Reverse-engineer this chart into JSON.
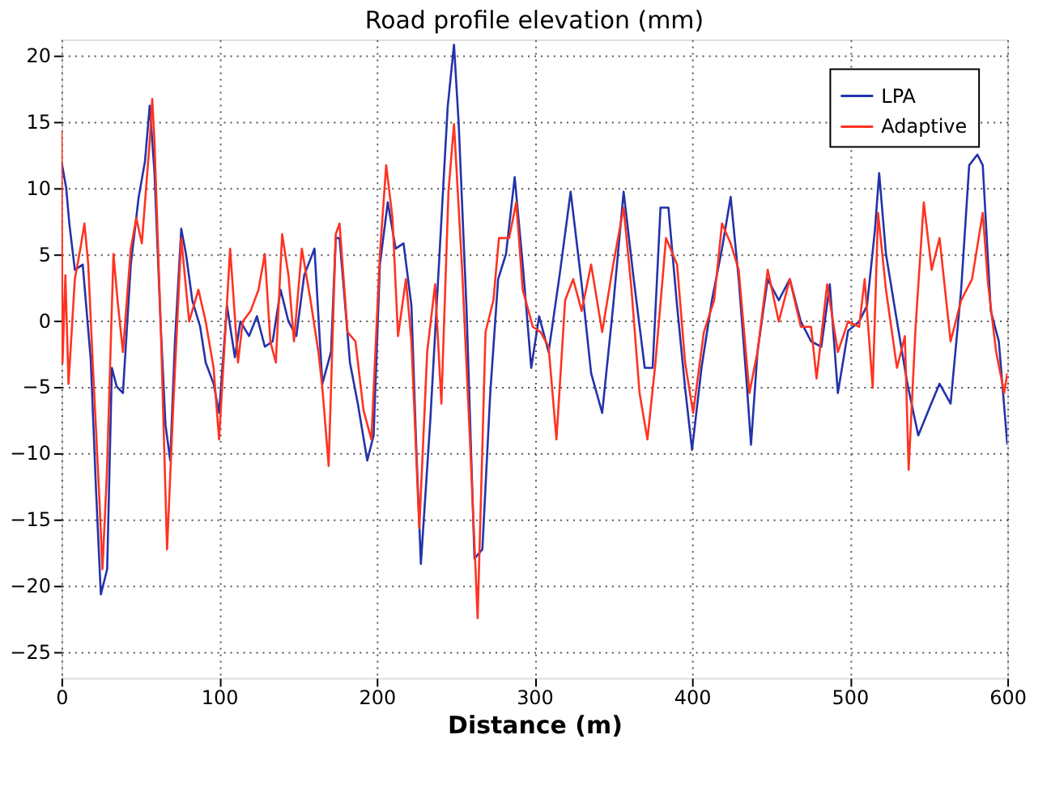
{
  "chart_data": {
    "type": "line",
    "title": "Road profile elevation (mm)",
    "xlabel": "Distance (m)",
    "xlim": [
      0,
      600
    ],
    "xticks": [
      0,
      100,
      200,
      300,
      400,
      500,
      600
    ],
    "ylim": [
      -27,
      21.2
    ],
    "yticks": [
      -25,
      -20,
      -15,
      -10,
      -5,
      0,
      5,
      10,
      15,
      20
    ],
    "grid": true,
    "legend": "top right",
    "series": [
      {
        "name": "LPA",
        "color": "#2233aa",
        "x": [
          0,
          3,
          5,
          8.5,
          13.5,
          18.6,
          22,
          25,
          29,
          32,
          35,
          39,
          44,
          49,
          53,
          56,
          59,
          63,
          66,
          69,
          72,
          76,
          79,
          83,
          88,
          91.5,
          96.5,
          100,
          105,
          110,
          113.5,
          119,
          124,
          129,
          134,
          139,
          144,
          149,
          154,
          160.5,
          165.5,
          171,
          174,
          176.4,
          183,
          188,
          194,
          198,
          202,
          207,
          212,
          217,
          222,
          225,
          228,
          234,
          240,
          245,
          249,
          252,
          257,
          262,
          267,
          272,
          277,
          282,
          287.5,
          292.6,
          298,
          303,
          309,
          316,
          323,
          330,
          336,
          343,
          350,
          356.6,
          363,
          370,
          375,
          380,
          385,
          390.5,
          395.6,
          400,
          406,
          412.6,
          419,
          424.5,
          429.6,
          434.7,
          437.4,
          441.5,
          448,
          455,
          462,
          469,
          475.5,
          482,
          487.4,
          492.5,
          499,
          506,
          511,
          516,
          518.7,
          523,
          530,
          536.6,
          543.5,
          550,
          557,
          564,
          570.7,
          575.8,
          581,
          584.4,
          589.5,
          594.6,
          600
        ],
        "values": [
          12,
          10,
          7.3,
          3.8,
          4.2,
          -3,
          -13,
          -20.7,
          -18.8,
          -3.6,
          -5,
          -5.5,
          4.2,
          9.3,
          12,
          16.2,
          11.2,
          -0.5,
          -7.9,
          -10.6,
          -1.6,
          6.9,
          5,
          1.5,
          -0.5,
          -3.2,
          -4.8,
          -7,
          1.1,
          -2.8,
          -0.1,
          -1.2,
          0.3,
          -2,
          -1.6,
          2.3,
          -0.1,
          -1.2,
          3.4,
          5.4,
          -4.8,
          -2.4,
          6.2,
          6.2,
          -3.2,
          -6.3,
          -10.6,
          -8.7,
          4.2,
          8.9,
          5.4,
          5.8,
          1.1,
          -9.4,
          -18.4,
          -7.5,
          5.4,
          16.1,
          20.8,
          14.8,
          0.7,
          -18,
          -17.3,
          -5.5,
          3.1,
          5,
          10.8,
          4.2,
          -3.6,
          0.3,
          -2.4,
          3.4,
          9.7,
          2.7,
          -4,
          -7,
          1.1,
          9.7,
          3.1,
          -3.6,
          -3.6,
          8.5,
          8.5,
          1.1,
          -5.1,
          -9.8,
          -3.6,
          1.5,
          5.4,
          9.3,
          3.1,
          -4.8,
          -9.4,
          -2.4,
          3.1,
          1.5,
          3.1,
          -0.1,
          -1.6,
          -2,
          2.7,
          -5.5,
          -0.8,
          -0.1,
          1.1,
          6.8,
          11.1,
          5,
          -0.1,
          -4.8,
          -8.7,
          -6.8,
          -4.8,
          -6.3,
          2.3,
          11.7,
          12.5,
          11.7,
          0.7,
          -1.6,
          -9.4
        ]
      },
      {
        "name": "Adaptive",
        "color": "#ff3322",
        "x": [
          0,
          0.7,
          2.5,
          4.5,
          8.5,
          12,
          14.6,
          17,
          20,
          24,
          26,
          28.8,
          31.5,
          33,
          35.6,
          39,
          44,
          47.5,
          51,
          56,
          57.6,
          59,
          63,
          67,
          71,
          76,
          81,
          86.9,
          91.5,
          96.5,
          100,
          107,
          112,
          115,
          120,
          125,
          129,
          132.5,
          136,
          140,
          144,
          147.5,
          152.5,
          158,
          163,
          165.5,
          169.5,
          174,
          176.4,
          181.5,
          186.5,
          191.6,
          196.6,
          202,
          206,
          210,
          213.5,
          218.5,
          222,
          227,
          232,
          237,
          241,
          245.5,
          249,
          254,
          259,
          264,
          269,
          274,
          277.5,
          284,
          288.5,
          292.6,
          299,
          304,
          309,
          314,
          319.5,
          324.6,
          330,
          336,
          343,
          350,
          356.6,
          361.6,
          366.7,
          371.7,
          376.8,
          383.5,
          390.5,
          395.6,
          400.7,
          407.5,
          414,
          419,
          424.5,
          429.6,
          436.4,
          441.5,
          448,
          455,
          462,
          469,
          475.5,
          479,
          485.7,
          492.5,
          499,
          506,
          509.5,
          514.6,
          518,
          523,
          530,
          535,
          537.4,
          541.8,
          547,
          552,
          557,
          564,
          570.7,
          577.6,
          584.4,
          587.8,
          592.9,
          598,
          600
        ],
        "values": [
          14.3,
          -3.2,
          3.4,
          -4.8,
          3.1,
          5.4,
          7.3,
          4.2,
          -3.6,
          -13.3,
          -18.8,
          -11.7,
          -0.9,
          5,
          1.5,
          -2.4,
          5.4,
          7.7,
          5.8,
          13.5,
          16.7,
          13.5,
          -0.5,
          -17.3,
          -6.3,
          6.2,
          -0.1,
          2.3,
          -0.1,
          -3.6,
          -9,
          5.4,
          -3.2,
          -0.1,
          0.7,
          2.3,
          5,
          -1.6,
          -3.2,
          6.5,
          3.4,
          -1.6,
          5.4,
          1.5,
          -2.4,
          -5.1,
          -11,
          6.5,
          7.3,
          -0.9,
          -1.6,
          -6.8,
          -9,
          5,
          11.7,
          7.7,
          -1.2,
          3.1,
          -1.6,
          -15.7,
          -2.4,
          2.7,
          -6.3,
          9.7,
          14.8,
          4.2,
          -8.7,
          -22.5,
          -0.9,
          1.5,
          6.2,
          6.2,
          8.9,
          2.3,
          -0.5,
          -0.9,
          -2,
          -9,
          1.5,
          3.1,
          0.7,
          4.2,
          -0.9,
          4.2,
          8.5,
          2.3,
          -5.5,
          -9,
          -3.2,
          6.2,
          4.2,
          -3.2,
          -7,
          -0.9,
          1.5,
          7.3,
          5.8,
          3.8,
          -5.5,
          -2.4,
          3.8,
          -0.1,
          3.1,
          -0.5,
          -0.5,
          -4.4,
          2.7,
          -2.4,
          -0.1,
          -0.5,
          3.1,
          -5.1,
          8.1,
          2.3,
          -3.6,
          -1.2,
          -11.3,
          -0.5,
          8.9,
          3.8,
          6.2,
          -1.6,
          1.5,
          3.1,
          8.1,
          2.7,
          -2.4,
          -5.5,
          -4
        ]
      }
    ]
  }
}
